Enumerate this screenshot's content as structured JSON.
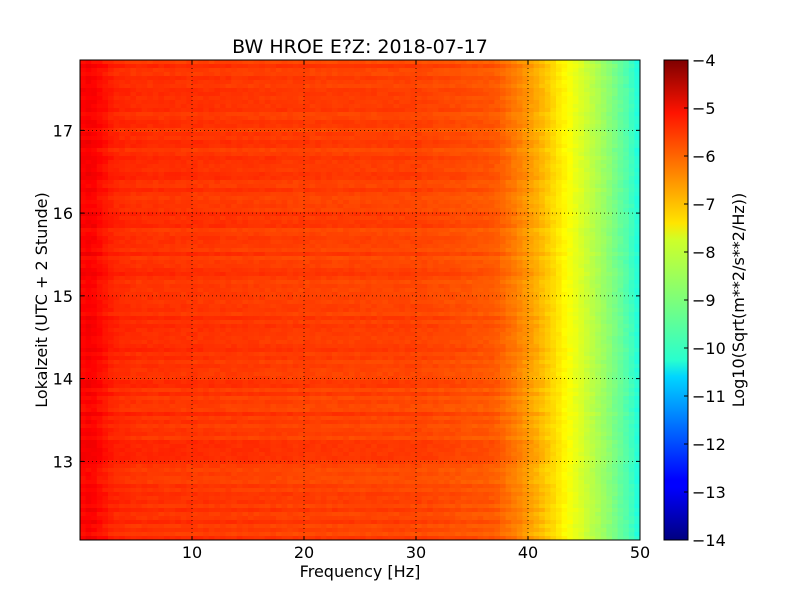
{
  "chart_data": {
    "type": "heatmap",
    "title": "BW HROE E?Z: 2018-07-17",
    "xlabel": "Frequency [Hz]",
    "ylabel": "Lokalzeit (UTC + 2 Stunde)",
    "xlim": [
      0,
      50
    ],
    "ylim": [
      17.85,
      12.05
    ],
    "x_ticks": [
      10,
      20,
      30,
      40,
      50
    ],
    "x_tick_labels": [
      "10",
      "20",
      "30",
      "40",
      "50"
    ],
    "y_ticks": [
      13,
      14,
      15,
      16,
      17
    ],
    "y_tick_labels": [
      "13",
      "14",
      "15",
      "16",
      "17"
    ],
    "grid": true,
    "colormap": "jet",
    "colorbar": {
      "label": "Log10(Sqrt(m**2/s**2/Hz))",
      "range": [
        -14,
        -4
      ],
      "ticks": [
        -4,
        -5,
        -6,
        -7,
        -8,
        -9,
        -10,
        -11,
        -12,
        -13,
        -14
      ],
      "tick_labels": [
        "−4",
        "−5",
        "−6",
        "−7",
        "−8",
        "−9",
        "−10",
        "−11",
        "−12",
        "−13",
        "−14"
      ]
    },
    "frequency_profile": {
      "frequency_hz": [
        0,
        1,
        3,
        5,
        10,
        20,
        30,
        37,
        39,
        41,
        43,
        45,
        47,
        49,
        50
      ],
      "value": [
        -5.3,
        -5.2,
        -5.6,
        -5.7,
        -5.75,
        -5.85,
        -5.9,
        -6.1,
        -6.5,
        -7.0,
        -7.6,
        -8.2,
        -8.8,
        -9.5,
        -10.0
      ]
    },
    "notable_features": [
      {
        "time": 14.4,
        "freq_range_hz": [
          5,
          15
        ],
        "value": -5.1
      },
      {
        "time": 12.55,
        "freq_range_hz": [
          5,
          15
        ],
        "value": -5.4
      },
      {
        "time": 15.35,
        "freq_range_hz": [
          20,
          45
        ],
        "value": -5.5
      },
      {
        "time": 15.75,
        "freq_range_hz": [
          25,
          40
        ],
        "value": -5.5
      }
    ]
  }
}
